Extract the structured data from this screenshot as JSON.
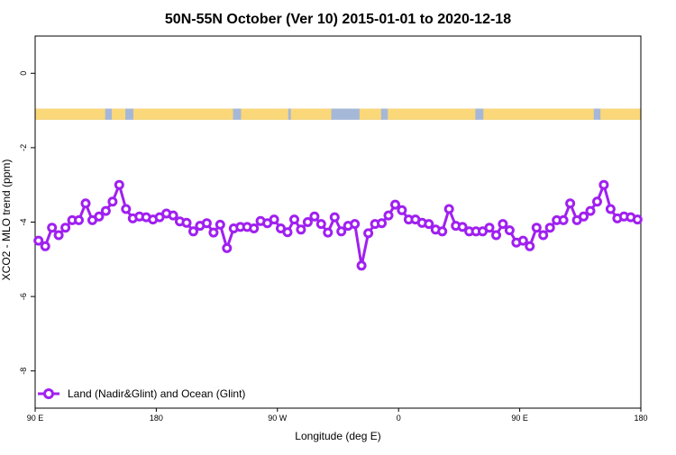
{
  "chart_data": {
    "type": "line",
    "title": "50N-55N October (Ver 10)   2015-01-01 to 2020-12-18",
    "xlabel": "Longitude (deg E)",
    "ylabel": "XCO2 - MLO trend (ppm)",
    "xlim": [
      90,
      540
    ],
    "ylim": [
      -9,
      1
    ],
    "x_ticks": [
      {
        "value": 90,
        "label": "90 E"
      },
      {
        "value": 180,
        "label": "180"
      },
      {
        "value": 270,
        "label": "90 W"
      },
      {
        "value": 360,
        "label": "0"
      },
      {
        "value": 450,
        "label": "90 E"
      },
      {
        "value": 540,
        "label": "180"
      }
    ],
    "y_ticks": [
      {
        "value": 0,
        "label": "0"
      },
      {
        "value": -2,
        "label": "-2"
      },
      {
        "value": -4,
        "label": "-4"
      },
      {
        "value": -6,
        "label": "-6"
      },
      {
        "value": -8,
        "label": "-8"
      }
    ],
    "grid": false,
    "legend": {
      "position": "bottom-left"
    },
    "colors": {
      "series": "#a020f0",
      "land": "#fad87a",
      "ocean": "#a6b8d8"
    },
    "surface_strip": {
      "y_range": [
        -1.25,
        -0.95
      ],
      "x_range": [
        90,
        540
      ],
      "land_spans": [
        [
          90,
          142
        ],
        [
          147,
          157
        ],
        [
          163,
          237
        ],
        [
          243,
          278
        ],
        [
          280,
          310
        ],
        [
          331,
          347
        ],
        [
          352,
          417
        ],
        [
          423,
          505
        ],
        [
          510,
          540
        ]
      ]
    },
    "series": [
      {
        "name": "Land (Nadir&Glint) and Ocean (Glint)",
        "x": [
          92.5,
          97.5,
          102.5,
          107.5,
          112.5,
          117.5,
          122.5,
          127.5,
          132.5,
          137.5,
          142.5,
          147.5,
          152.5,
          157.5,
          162.5,
          167.5,
          172.5,
          177.5,
          182.5,
          187.5,
          192.5,
          197.5,
          202.5,
          207.5,
          212.5,
          217.5,
          222.5,
          227.5,
          232.5,
          237.5,
          242.5,
          247.5,
          252.5,
          257.5,
          262.5,
          267.5,
          272.5,
          277.5,
          282.5,
          287.5,
          292.5,
          297.5,
          302.5,
          307.5,
          312.5,
          317.5,
          322.5,
          327.5,
          332.5,
          337.5,
          342.5,
          347.5,
          352.5,
          357.5,
          362.5,
          367.5,
          372.5,
          377.5,
          382.5,
          387.5,
          392.5,
          397.5,
          402.5,
          407.5,
          412.5,
          417.5,
          422.5,
          427.5,
          432.5,
          437.5,
          442.5,
          447.5,
          452.5,
          457.5,
          462.5,
          467.5,
          472.5,
          477.5,
          482.5,
          487.5,
          492.5,
          497.5,
          502.5,
          507.5,
          512.5,
          517.5,
          522.5,
          527.5,
          532.5,
          537.5
        ],
        "values": [
          -4.5,
          -4.65,
          -4.15,
          -4.35,
          -4.15,
          -3.95,
          -3.95,
          -3.5,
          -3.95,
          -3.85,
          -3.7,
          -3.45,
          -3.0,
          -3.65,
          -3.9,
          -3.85,
          -3.87,
          -3.93,
          -3.87,
          -3.77,
          -3.82,
          -3.98,
          -4.02,
          -4.25,
          -4.1,
          -4.03,
          -4.28,
          -4.07,
          -4.7,
          -4.17,
          -4.13,
          -4.13,
          -4.17,
          -3.97,
          -4.03,
          -3.93,
          -4.17,
          -4.27,
          -3.93,
          -4.2,
          -4.0,
          -3.85,
          -4.05,
          -4.28,
          -3.87,
          -4.25,
          -4.1,
          -4.05,
          -5.17,
          -4.3,
          -4.05,
          -4.03,
          -3.82,
          -3.53,
          -3.68,
          -3.93,
          -3.93,
          -4.02,
          -4.05,
          -4.2,
          -4.25,
          -3.65,
          -4.1,
          -4.13,
          -4.25,
          -4.25,
          -4.25,
          -4.15,
          -4.35,
          -4.05,
          -4.22,
          -4.55,
          -4.5,
          -4.65,
          -4.15,
          -4.35,
          -4.15,
          -3.95,
          -3.95,
          -3.5,
          -3.95,
          -3.85,
          -3.7,
          -3.45,
          -3.0,
          -3.65,
          -3.9,
          -3.85,
          -3.87,
          -3.93
        ]
      }
    ]
  }
}
